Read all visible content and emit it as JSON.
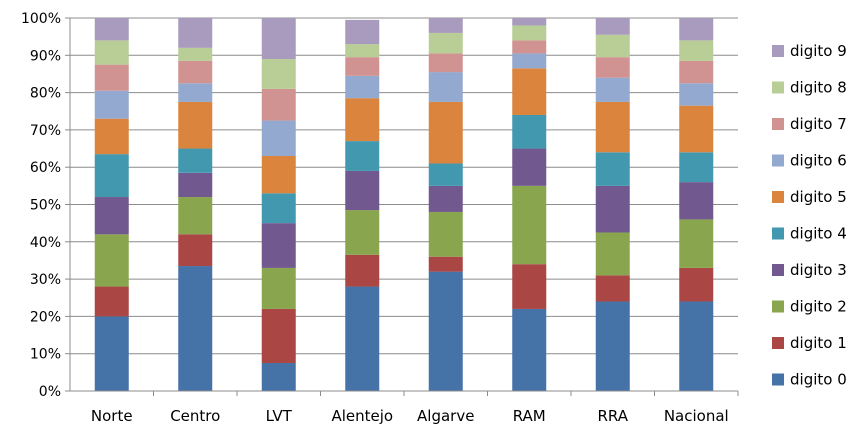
{
  "chart_data": {
    "type": "bar",
    "stacked": true,
    "percent": true,
    "categories": [
      "Norte",
      "Centro",
      "LVT",
      "Alentejo",
      "Algarve",
      "RAM",
      "RRA",
      "Nacional"
    ],
    "ylim": [
      0,
      100
    ],
    "yticks": [
      "0%",
      "10%",
      "20%",
      "30%",
      "40%",
      "50%",
      "60%",
      "70%",
      "80%",
      "90%",
      "100%"
    ],
    "legend_position": "right",
    "grid": "horizontal",
    "series": [
      {
        "name": "digito 0",
        "color": "#4572A7",
        "values": [
          20,
          33.5,
          7.5,
          28,
          32,
          22,
          24,
          24
        ]
      },
      {
        "name": "digito 1",
        "color": "#AA4643",
        "values": [
          8,
          8.5,
          14.5,
          8.5,
          4,
          12,
          7,
          9
        ]
      },
      {
        "name": "digito 2",
        "color": "#89A54E",
        "values": [
          14,
          10,
          11,
          12,
          12,
          21,
          11.5,
          13
        ]
      },
      {
        "name": "digito 3",
        "color": "#71588F",
        "values": [
          10,
          6.5,
          12,
          10.5,
          7,
          10,
          12.5,
          10
        ]
      },
      {
        "name": "digito 4",
        "color": "#4198AF",
        "values": [
          11.5,
          6.5,
          8,
          8,
          6,
          9,
          9,
          8
        ]
      },
      {
        "name": "digito 5",
        "color": "#DB843D",
        "values": [
          9.5,
          12.5,
          10,
          11.5,
          16.5,
          12.5,
          13.5,
          12.5
        ]
      },
      {
        "name": "digito 6",
        "color": "#93A9CF",
        "values": [
          7.5,
          5,
          9.5,
          6,
          8,
          4,
          6.5,
          6
        ]
      },
      {
        "name": "digito 7",
        "color": "#D19392",
        "values": [
          7,
          6,
          8.5,
          5,
          5,
          3.5,
          5.5,
          6
        ]
      },
      {
        "name": "digito 8",
        "color": "#B9CD96",
        "values": [
          6.5,
          3.5,
          8,
          3.5,
          5.5,
          4,
          6,
          5.5
        ]
      },
      {
        "name": "digito 9",
        "color": "#A99BBD",
        "values": [
          6,
          8,
          11,
          6.5,
          4,
          2,
          4.5,
          6
        ]
      }
    ]
  }
}
